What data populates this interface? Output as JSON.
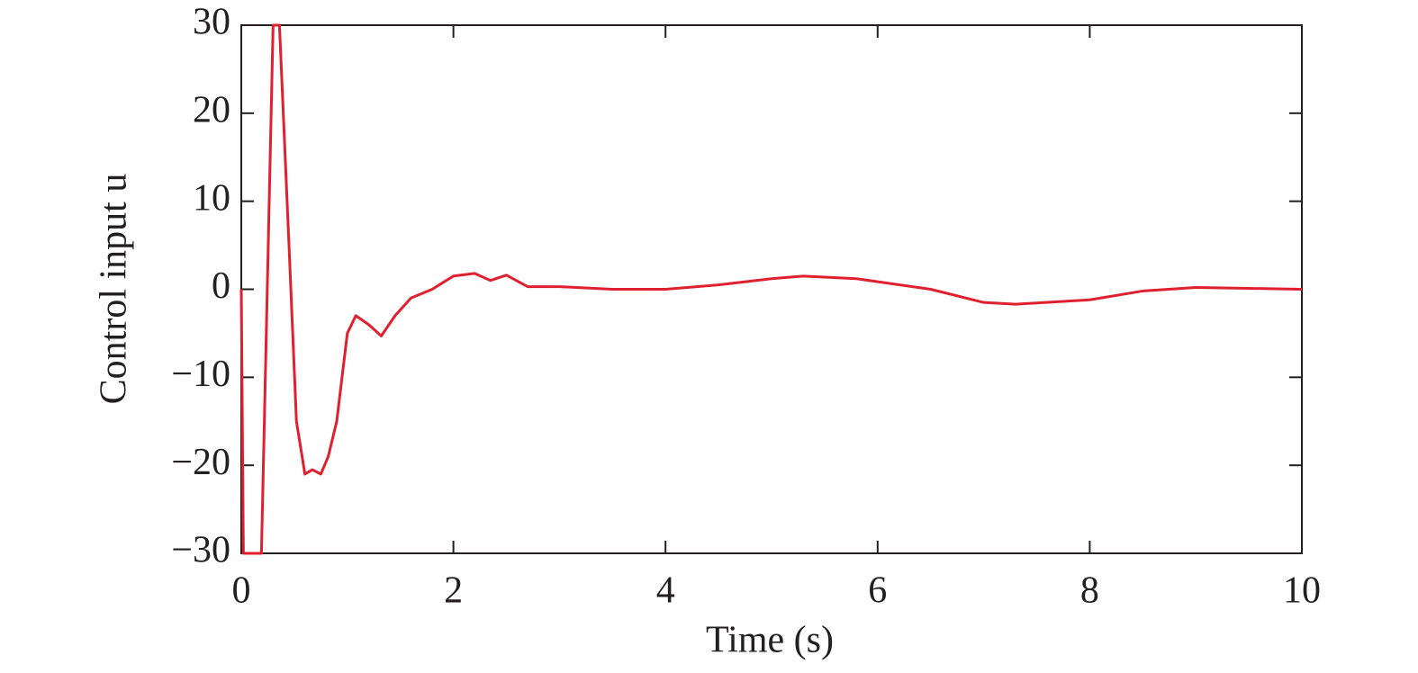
{
  "chart_data": {
    "type": "line",
    "xlabel": "Time (s)",
    "ylabel": "Control input u",
    "x": [
      0,
      0.02,
      0.1,
      0.19,
      0.3,
      0.36,
      0.45,
      0.52,
      0.6,
      0.67,
      0.75,
      0.82,
      0.9,
      1.0,
      1.08,
      1.2,
      1.32,
      1.45,
      1.6,
      1.8,
      2.0,
      2.2,
      2.35,
      2.5,
      2.7,
      3.0,
      3.5,
      4.0,
      4.5,
      5.0,
      5.3,
      5.8,
      6.5,
      7.0,
      7.3,
      8.0,
      8.5,
      9.0,
      9.5,
      10.0
    ],
    "series": [
      {
        "name": "u",
        "color": "#e0202e",
        "values": [
          0,
          -30,
          -30,
          -30,
          30,
          30,
          5,
          -15,
          -21,
          -20.5,
          -21,
          -19,
          -15,
          -5,
          -3,
          -4,
          -5.3,
          -3,
          -1,
          0,
          1.5,
          1.8,
          1,
          1.6,
          0.3,
          0.3,
          0,
          0,
          0.5,
          1.2,
          1.5,
          1.2,
          0,
          -1.5,
          -1.7,
          -1.2,
          -0.2,
          0.2,
          0.1,
          0
        ]
      }
    ],
    "xlim": [
      0,
      10
    ],
    "xticks": [
      0,
      2,
      4,
      6,
      8,
      10
    ],
    "ylim": [
      -30,
      30
    ],
    "yticks": [
      {
        "value": -30,
        "label": "−30"
      },
      {
        "value": -20,
        "label": "−20"
      },
      {
        "value": -10,
        "label": "−10"
      },
      0,
      10,
      20,
      30
    ],
    "grid": false
  }
}
